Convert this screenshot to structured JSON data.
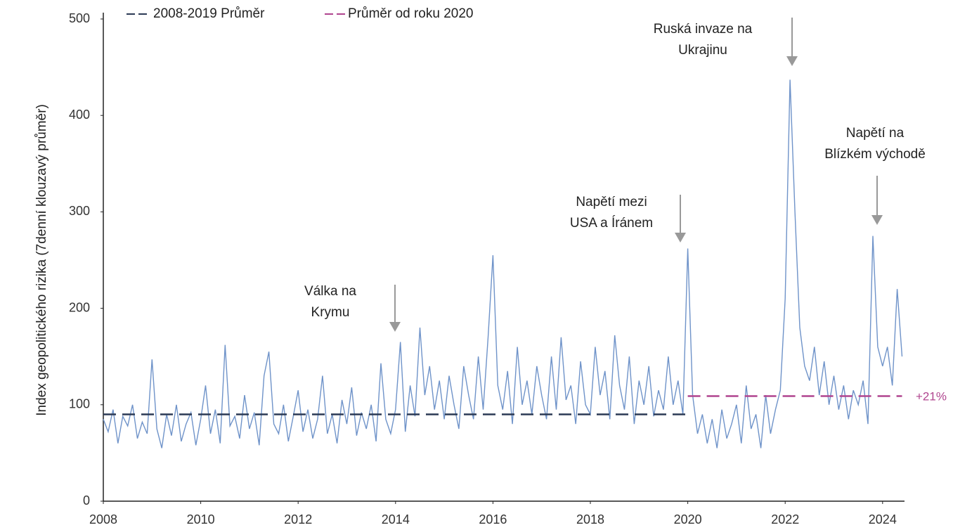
{
  "chart_data": {
    "type": "line",
    "y_label": "Index geopolitického rizika (7denní klouzavý průměr)",
    "xlim": [
      2008,
      2024.45
    ],
    "ylim": [
      0,
      500
    ],
    "xticks": [
      2008,
      2010,
      2012,
      2014,
      2016,
      2018,
      2020,
      2022,
      2024
    ],
    "yticks": [
      0,
      100,
      200,
      300,
      400,
      500
    ],
    "legend": "top",
    "series": [
      {
        "color": "#6f93c9",
        "x": [
          2008.0,
          2008.1,
          2008.2,
          2008.3,
          2008.4,
          2008.5,
          2008.6,
          2008.7,
          2008.8,
          2008.9,
          2009.0,
          2009.1,
          2009.2,
          2009.3,
          2009.4,
          2009.5,
          2009.6,
          2009.7,
          2009.8,
          2009.9,
          2010.0,
          2010.1,
          2010.2,
          2010.3,
          2010.4,
          2010.5,
          2010.6,
          2010.7,
          2010.8,
          2010.9,
          2011.0,
          2011.1,
          2011.2,
          2011.3,
          2011.4,
          2011.5,
          2011.6,
          2011.7,
          2011.8,
          2011.9,
          2012.0,
          2012.1,
          2012.2,
          2012.3,
          2012.4,
          2012.5,
          2012.6,
          2012.7,
          2012.8,
          2012.9,
          2013.0,
          2013.1,
          2013.2,
          2013.3,
          2013.4,
          2013.5,
          2013.6,
          2013.7,
          2013.8,
          2013.9,
          2014.0,
          2014.1,
          2014.2,
          2014.3,
          2014.4,
          2014.5,
          2014.6,
          2014.7,
          2014.8,
          2014.9,
          2015.0,
          2015.1,
          2015.2,
          2015.3,
          2015.4,
          2015.5,
          2015.6,
          2015.7,
          2015.8,
          2015.9,
          2016.0,
          2016.1,
          2016.2,
          2016.3,
          2016.4,
          2016.5,
          2016.6,
          2016.7,
          2016.8,
          2016.9,
          2017.0,
          2017.1,
          2017.2,
          2017.3,
          2017.4,
          2017.5,
          2017.6,
          2017.7,
          2017.8,
          2017.9,
          2018.0,
          2018.1,
          2018.2,
          2018.3,
          2018.4,
          2018.5,
          2018.6,
          2018.7,
          2018.8,
          2018.9,
          2019.0,
          2019.1,
          2019.2,
          2019.3,
          2019.4,
          2019.5,
          2019.6,
          2019.7,
          2019.8,
          2019.9,
          2020.0,
          2020.1,
          2020.2,
          2020.3,
          2020.4,
          2020.5,
          2020.6,
          2020.7,
          2020.8,
          2020.9,
          2021.0,
          2021.1,
          2021.2,
          2021.3,
          2021.4,
          2021.5,
          2021.6,
          2021.7,
          2021.8,
          2021.9,
          2022.0,
          2022.1,
          2022.2,
          2022.3,
          2022.4,
          2022.5,
          2022.6,
          2022.7,
          2022.8,
          2022.9,
          2023.0,
          2023.1,
          2023.2,
          2023.3,
          2023.4,
          2023.5,
          2023.6,
          2023.7,
          2023.8,
          2023.9,
          2024.0,
          2024.1,
          2024.2,
          2024.3,
          2024.4
        ],
        "values": [
          85,
          72,
          95,
          60,
          88,
          78,
          100,
          65,
          82,
          70,
          147,
          75,
          55,
          90,
          68,
          100,
          62,
          80,
          92,
          58,
          85,
          120,
          70,
          95,
          60,
          162,
          78,
          88,
          65,
          110,
          75,
          92,
          58,
          130,
          155,
          80,
          70,
          100,
          62,
          88,
          115,
          72,
          95,
          65,
          85,
          130,
          70,
          90,
          60,
          105,
          80,
          118,
          68,
          92,
          75,
          100,
          62,
          143,
          85,
          70,
          95,
          165,
          72,
          120,
          88,
          180,
          110,
          140,
          95,
          125,
          85,
          130,
          100,
          75,
          140,
          110,
          85,
          150,
          95,
          170,
          255,
          120,
          95,
          135,
          80,
          160,
          100,
          125,
          90,
          140,
          110,
          85,
          150,
          95,
          170,
          105,
          120,
          80,
          145,
          100,
          90,
          160,
          110,
          135,
          85,
          172,
          120,
          95,
          150,
          80,
          125,
          100,
          140,
          88,
          115,
          95,
          150,
          100,
          125,
          90,
          262,
          110,
          70,
          90,
          60,
          85,
          55,
          95,
          65,
          80,
          100,
          60,
          120,
          75,
          90,
          55,
          110,
          70,
          95,
          115,
          210,
          437,
          300,
          180,
          140,
          125,
          160,
          110,
          145,
          100,
          130,
          95,
          120,
          85,
          115,
          100,
          125,
          80,
          275,
          160,
          140,
          160,
          120,
          220,
          150
        ]
      },
      {
        "name": "2008-2019 Průměr",
        "color": "#2b3a55",
        "dashed": true,
        "x": [
          2008,
          2020
        ],
        "values": [
          90,
          90
        ]
      },
      {
        "name": "Průměr od roku 2020",
        "color": "#b0458f",
        "dashed": true,
        "x": [
          2020,
          2024.4
        ],
        "values": [
          109,
          109
        ]
      }
    ],
    "series_label": "+21%",
    "annotations": [
      [
        "Válka na",
        "Krymu"
      ],
      [
        "Napětí mezi",
        "USA a Íránem"
      ],
      [
        "Ruská invaze na",
        "Ukrajinu"
      ],
      [
        "Napětí na",
        "Blízkém východě"
      ]
    ]
  }
}
